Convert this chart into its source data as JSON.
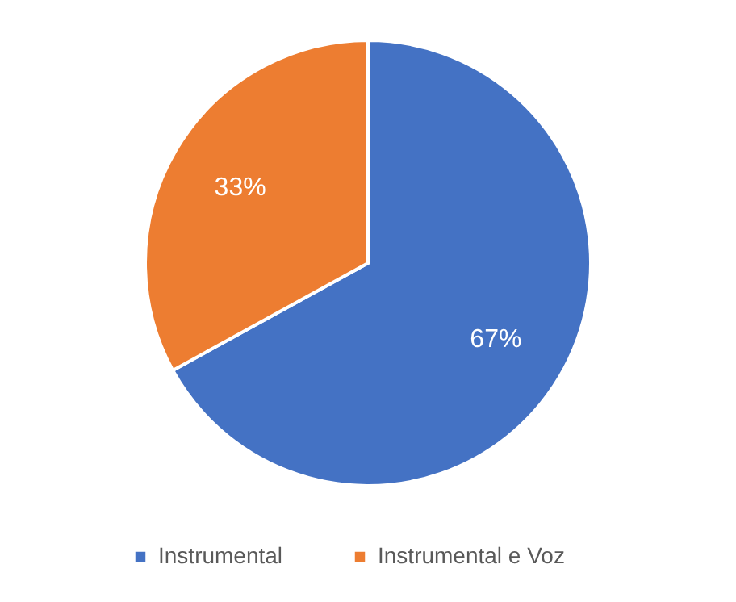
{
  "chart_data": {
    "type": "pie",
    "categories": [
      "Instrumental",
      "Instrumental e Voz"
    ],
    "values": [
      67,
      33
    ],
    "colors": [
      "#4472c4",
      "#ed7d31"
    ],
    "value_labels": [
      "67%",
      "33%"
    ],
    "legend": "bottom"
  }
}
